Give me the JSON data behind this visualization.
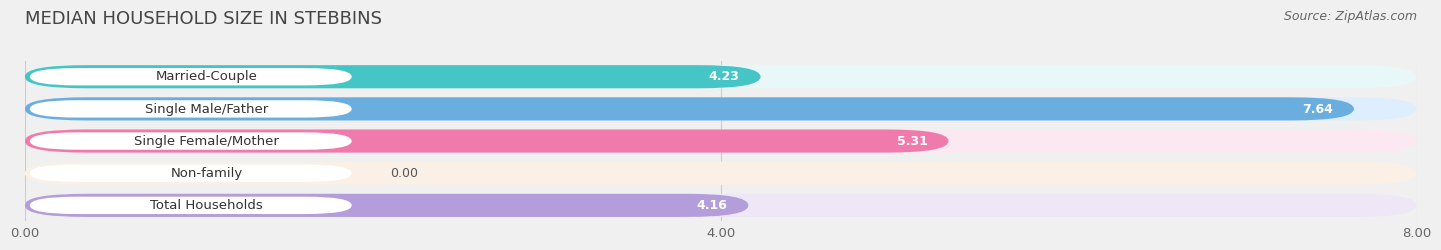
{
  "title": "MEDIAN HOUSEHOLD SIZE IN STEBBINS",
  "source": "Source: ZipAtlas.com",
  "categories": [
    "Married-Couple",
    "Single Male/Father",
    "Single Female/Mother",
    "Non-family",
    "Total Households"
  ],
  "values": [
    4.23,
    7.64,
    5.31,
    0.0,
    4.16
  ],
  "bar_colors": [
    "#45c5c5",
    "#6aaee0",
    "#f07aab",
    "#f5c897",
    "#b39ddb"
  ],
  "bar_bg_colors": [
    "#e8f8f8",
    "#ddeeff",
    "#fce8f0",
    "#faf0e6",
    "#ede7f6"
  ],
  "gap_color": "#e8e8e8",
  "xlim": [
    0,
    8.0
  ],
  "xticks": [
    0.0,
    4.0,
    8.0
  ],
  "xtick_labels": [
    "0.00",
    "4.00",
    "8.00"
  ],
  "title_fontsize": 13,
  "source_fontsize": 9,
  "label_fontsize": 9.5,
  "value_fontsize": 9,
  "background_color": "#f0f0f0"
}
